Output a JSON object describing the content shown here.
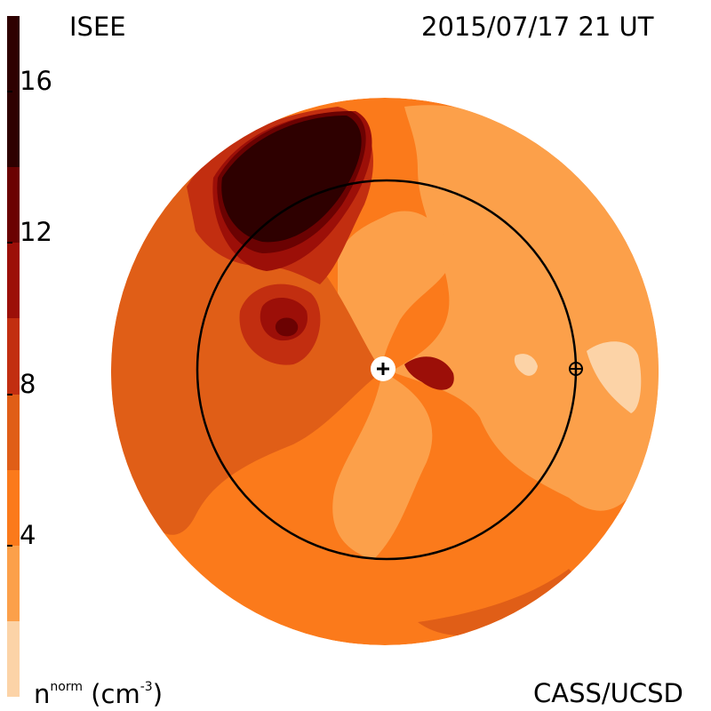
{
  "header": {
    "title_left": "ISEE",
    "title_right": "2015/07/17 21 UT"
  },
  "footer": {
    "credit": "CASS/UCSD",
    "units_main": "n",
    "units_super": "norm",
    "units_paren": "(cm",
    "units_exp": "-3",
    "units_close": ")"
  },
  "colorbar": {
    "ticks": [
      "4",
      "8",
      "12",
      "16"
    ],
    "tick_values": [
      4,
      8,
      12,
      16
    ],
    "range": [
      0,
      18
    ],
    "levels": [
      {
        "from": 0,
        "to": 2,
        "color": "#fcd3a7"
      },
      {
        "from": 2,
        "to": 4,
        "color": "#fca04a"
      },
      {
        "from": 4,
        "to": 6,
        "color": "#fb7a1b"
      },
      {
        "from": 6,
        "to": 8,
        "color": "#e05e17"
      },
      {
        "from": 8,
        "to": 10,
        "color": "#c22e10"
      },
      {
        "from": 10,
        "to": 12,
        "color": "#9c0f08"
      },
      {
        "from": 12,
        "to": 14,
        "color": "#6b0202"
      },
      {
        "from": 14,
        "to": 18,
        "color": "#2e0000"
      }
    ]
  },
  "chart_data": {
    "type": "heatmap",
    "title": "ISEE",
    "timestamp": "2015/07/17 21 UT",
    "colorbar_label": "n^norm (cm^-3)",
    "colorbar_range": [
      0,
      18
    ],
    "colorbar_ticks": [
      4,
      8,
      12,
      16
    ],
    "projection": "polar ecliptic view, Sun at center",
    "markers": [
      "sun-marker",
      "earth-marker",
      "earth-orbit-circle"
    ],
    "regions": [
      {
        "name": "high-density-cloud-north",
        "value": 16
      },
      {
        "name": "moderate-region-west",
        "value": 9
      },
      {
        "name": "background-east",
        "value": 3
      },
      {
        "name": "background-south",
        "value": 5
      },
      {
        "name": "low-density-patch-east",
        "value": 1
      }
    ]
  }
}
